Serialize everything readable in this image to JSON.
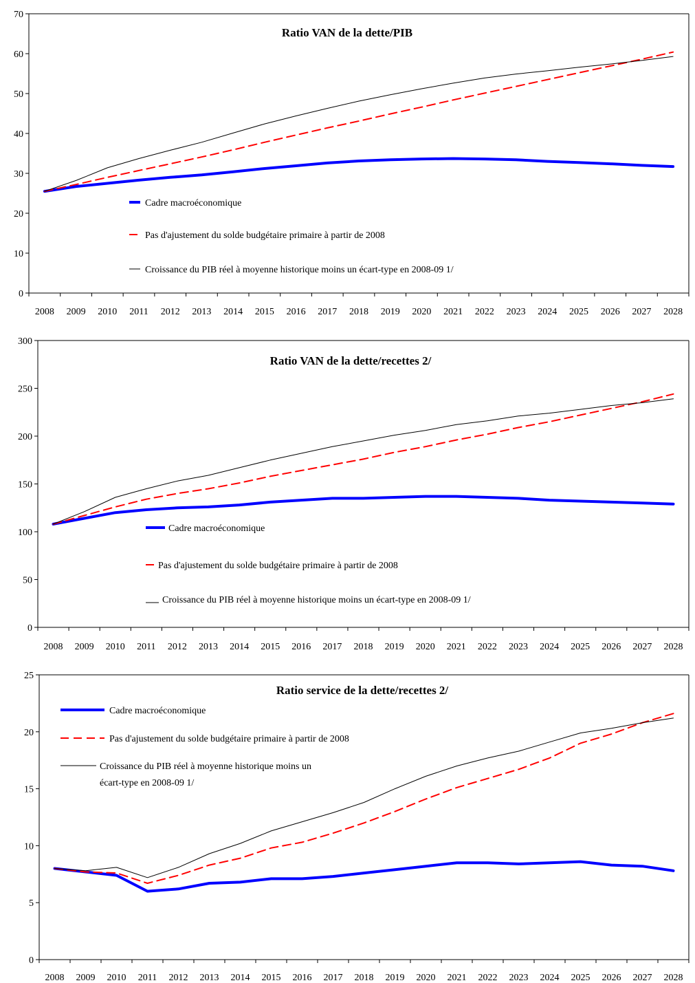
{
  "chart_data": [
    {
      "type": "line",
      "title": "Ratio VAN de la dette/PIB",
      "xlabel": "",
      "ylabel": "",
      "ylim": [
        0,
        70
      ],
      "yticks": [
        0,
        10,
        20,
        30,
        40,
        50,
        60,
        70
      ],
      "categories": [
        "2008",
        "2009",
        "2010",
        "2011",
        "2012",
        "2013",
        "2014",
        "2015",
        "2016",
        "2017",
        "2018",
        "2019",
        "2020",
        "2021",
        "2022",
        "2023",
        "2024",
        "2025",
        "2026",
        "2027",
        "2028"
      ],
      "grid": false,
      "legend_position": "center-left",
      "series": [
        {
          "name": "Cadre macroéconomique",
          "color": "#0000ff",
          "style": "solid-thick",
          "values": [
            25.5,
            26.7,
            27.5,
            28.3,
            29.0,
            29.6,
            30.4,
            31.2,
            31.9,
            32.6,
            33.1,
            33.4,
            33.6,
            33.7,
            33.6,
            33.4,
            33.0,
            32.7,
            32.4,
            32.0,
            31.7
          ]
        },
        {
          "name": "Pas d'ajustement du solde budgétaire primaire à partir de 2008",
          "color": "#ff0000",
          "style": "dashed",
          "values": [
            25.5,
            27.2,
            29.0,
            30.7,
            32.4,
            34.1,
            35.9,
            37.8,
            39.6,
            41.4,
            43.1,
            44.9,
            46.6,
            48.4,
            50.1,
            51.8,
            53.5,
            55.2,
            56.9,
            58.6,
            60.4
          ]
        },
        {
          "name": "Croissance du PIB réel à moyenne historique moins un écart-type en 2008-09 1/",
          "color": "#000000",
          "style": "solid-thin",
          "values": [
            25.5,
            28.2,
            31.4,
            33.7,
            35.8,
            37.8,
            40.1,
            42.4,
            44.4,
            46.3,
            48.1,
            49.7,
            51.2,
            52.6,
            53.9,
            54.9,
            55.7,
            56.6,
            57.4,
            58.3,
            59.3
          ]
        }
      ]
    },
    {
      "type": "line",
      "title": "Ratio VAN de la dette/recettes 2/",
      "xlabel": "",
      "ylabel": "",
      "ylim": [
        0,
        300
      ],
      "yticks": [
        0,
        50,
        100,
        150,
        200,
        250,
        300
      ],
      "categories": [
        "2008",
        "2009",
        "2010",
        "2011",
        "2012",
        "2013",
        "2014",
        "2015",
        "2016",
        "2017",
        "2018",
        "2019",
        "2020",
        "2021",
        "2022",
        "2023",
        "2024",
        "2025",
        "2026",
        "2027",
        "2028"
      ],
      "grid": false,
      "legend_position": "center-left",
      "series": [
        {
          "name": "Cadre macroéconomique",
          "color": "#0000ff",
          "style": "solid-thick",
          "values": [
            108,
            114,
            120,
            123,
            125,
            126,
            128,
            131,
            133,
            135,
            135,
            136,
            137,
            137,
            136,
            135,
            133,
            132,
            131,
            130,
            129
          ]
        },
        {
          "name": "Pas d'ajustement du solde budgétaire primaire à partir de 2008",
          "color": "#ff0000",
          "style": "dashed",
          "values": [
            108,
            117,
            126,
            134,
            140,
            145,
            151,
            158,
            164,
            170,
            176,
            183,
            189,
            196,
            202,
            209,
            215,
            222,
            229,
            236,
            244
          ]
        },
        {
          "name": "Croissance du PIB réel à moyenne historique moins un écart-type en 2008-09 1/",
          "color": "#000000",
          "style": "solid-thin",
          "values": [
            108,
            121,
            136,
            145,
            153,
            159,
            167,
            175,
            182,
            189,
            195,
            201,
            206,
            212,
            216,
            221,
            224,
            228,
            232,
            235,
            239
          ]
        }
      ]
    },
    {
      "type": "line",
      "title": "Ratio service de la dette/recettes 2/",
      "xlabel": "",
      "ylabel": "",
      "ylim": [
        0,
        25
      ],
      "yticks": [
        0,
        5,
        10,
        15,
        20,
        25
      ],
      "categories": [
        "2008",
        "2009",
        "2010",
        "2011",
        "2012",
        "2013",
        "2014",
        "2015",
        "2016",
        "2017",
        "2018",
        "2019",
        "2020",
        "2021",
        "2022",
        "2023",
        "2024",
        "2025",
        "2026",
        "2027",
        "2028"
      ],
      "grid": false,
      "legend_position": "top-left",
      "series": [
        {
          "name": "Cadre macroéconomique",
          "color": "#0000ff",
          "style": "solid-thick",
          "values": [
            8.0,
            7.7,
            7.4,
            6.0,
            6.2,
            6.7,
            6.8,
            7.1,
            7.1,
            7.3,
            7.6,
            7.9,
            8.2,
            8.5,
            8.5,
            8.4,
            8.5,
            8.6,
            8.3,
            8.2,
            7.8
          ]
        },
        {
          "name": "Pas d'ajustement du solde budgétaire primaire à partir de 2008",
          "color": "#ff0000",
          "style": "dashed",
          "values": [
            8.0,
            7.7,
            7.6,
            6.7,
            7.4,
            8.3,
            8.9,
            9.8,
            10.3,
            11.1,
            12.0,
            13.0,
            14.1,
            15.1,
            15.9,
            16.7,
            17.7,
            19.0,
            19.8,
            20.8,
            21.6
          ]
        },
        {
          "name": "Croissance du PIB réel à moyenne historique moins un écart-type en 2008-09 1/",
          "color": "#000000",
          "style": "solid-thin",
          "values": [
            8.0,
            7.8,
            8.1,
            7.2,
            8.1,
            9.3,
            10.2,
            11.3,
            12.1,
            12.9,
            13.8,
            15.0,
            16.1,
            17.0,
            17.7,
            18.3,
            19.1,
            19.9,
            20.3,
            20.8,
            21.2
          ]
        }
      ]
    }
  ]
}
